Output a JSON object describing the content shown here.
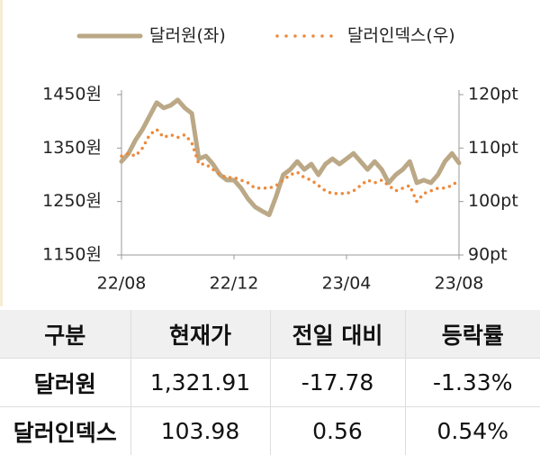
{
  "chart_data": {
    "type": "line",
    "categories": [
      "22/08",
      null,
      null,
      null,
      null,
      null,
      null,
      null,
      null,
      null,
      null,
      null,
      null,
      null,
      null,
      null,
      "22/12",
      null,
      null,
      null,
      null,
      null,
      null,
      null,
      null,
      null,
      null,
      null,
      null,
      null,
      null,
      null,
      "23/04",
      null,
      null,
      null,
      null,
      null,
      null,
      null,
      null,
      null,
      null,
      null,
      null,
      null,
      null,
      null,
      "23/08"
    ],
    "series": [
      {
        "name": "달러원(좌)",
        "color": "#bba886",
        "style": "solid",
        "axis": "y",
        "values": [
          1325,
          1340,
          1365,
          1385,
          1410,
          1435,
          1425,
          1430,
          1440,
          1425,
          1415,
          1330,
          1335,
          1320,
          1300,
          1290,
          1290,
          1275,
          1255,
          1240,
          1232,
          1225,
          1260,
          1300,
          1310,
          1325,
          1310,
          1320,
          1300,
          1320,
          1330,
          1320,
          1330,
          1340,
          1325,
          1310,
          1325,
          1310,
          1285,
          1300,
          1310,
          1325,
          1285,
          1290,
          1285,
          1300,
          1325,
          1340,
          1322
        ]
      },
      {
        "name": "달러인덱스(우)",
        "color": "#ec8a3c",
        "style": "dotted",
        "axis": "y2",
        "values": [
          108.5,
          109,
          108.5,
          110,
          112.5,
          113.5,
          112,
          112.5,
          112,
          112.5,
          111,
          107,
          107,
          106,
          105,
          104.5,
          104.5,
          104,
          103.5,
          102.5,
          102.5,
          102.5,
          103,
          104,
          105,
          105.5,
          104.5,
          104,
          103,
          102,
          101.5,
          101.5,
          101.5,
          102,
          103,
          104,
          103.5,
          104,
          103,
          102,
          102.5,
          103,
          100,
          101.5,
          102,
          102.5,
          102.5,
          103,
          104
        ]
      }
    ],
    "ylim": [
      1150,
      1450
    ],
    "yticks": [
      {
        "value": 1450,
        "label": "1450원"
      },
      {
        "value": 1350,
        "label": "1350원"
      },
      {
        "value": 1250,
        "label": "1250원"
      },
      {
        "value": 1150,
        "label": "1150원"
      }
    ],
    "y2lim": [
      90,
      120
    ],
    "y2ticks": [
      {
        "value": 120,
        "label": "120pt"
      },
      {
        "value": 110,
        "label": "110pt"
      },
      {
        "value": 100,
        "label": "100pt"
      },
      {
        "value": 90,
        "label": "90pt"
      }
    ]
  },
  "table": {
    "header": [
      "구분",
      "현재가",
      "전일 대비",
      "등락률"
    ],
    "rows": [
      [
        "달러원",
        "1,321.91",
        "-17.78",
        "-1.33%"
      ],
      [
        "달러인덱스",
        "103.98",
        "0.56",
        "0.54%"
      ]
    ]
  }
}
